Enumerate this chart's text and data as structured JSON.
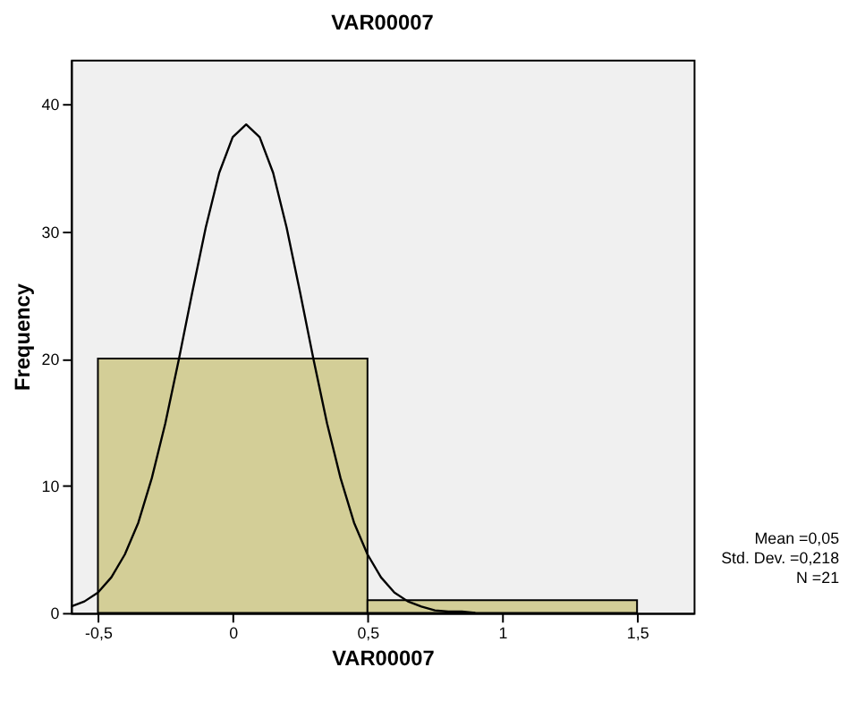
{
  "chart_data": {
    "type": "histogram",
    "title": "VAR00007",
    "xlabel": "VAR00007",
    "ylabel": "Frequency",
    "bins": [
      -0.5,
      0.5,
      1.5
    ],
    "values": [
      20,
      1
    ],
    "color": "#d3ce97",
    "series": [
      {
        "type": "line",
        "color": "#000000",
        "x": [
          -0.6,
          -0.55,
          -0.5,
          -0.45,
          -0.4,
          -0.35,
          -0.3,
          -0.25,
          -0.2,
          -0.15,
          -0.1,
          -0.05,
          0,
          0.05,
          0.1,
          0.15,
          0.2,
          0.25,
          0.3,
          0.35,
          0.4,
          0.45,
          0.5,
          0.55,
          0.6,
          0.65,
          0.7,
          0.75,
          0.8,
          0.85,
          0.9
        ],
        "values": [
          0.5,
          0.9,
          1.6,
          2.8,
          4.6,
          7.1,
          10.6,
          14.9,
          19.9,
          25.2,
          30.3,
          34.6,
          37.4,
          38.4,
          37.4,
          34.6,
          30.3,
          25.2,
          19.9,
          14.9,
          10.6,
          7.1,
          4.6,
          2.8,
          1.6,
          0.9,
          0.5,
          0.2,
          0.1,
          0.1,
          0
        ]
      }
    ],
    "xlim": [
      -0.6,
      1.71
    ],
    "xticks": [
      {
        "value": -0.5,
        "label": "-0,5"
      },
      0,
      {
        "value": 0.5,
        "label": "0,5"
      },
      1,
      {
        "value": 1.5,
        "label": "1,5"
      }
    ],
    "ylim": [
      0,
      43.5
    ],
    "yticks": [
      0,
      10,
      20,
      30,
      40
    ],
    "grid": false,
    "annotations": [
      "Mean =0,05",
      "Std. Dev. =0,218",
      "N =21"
    ]
  }
}
